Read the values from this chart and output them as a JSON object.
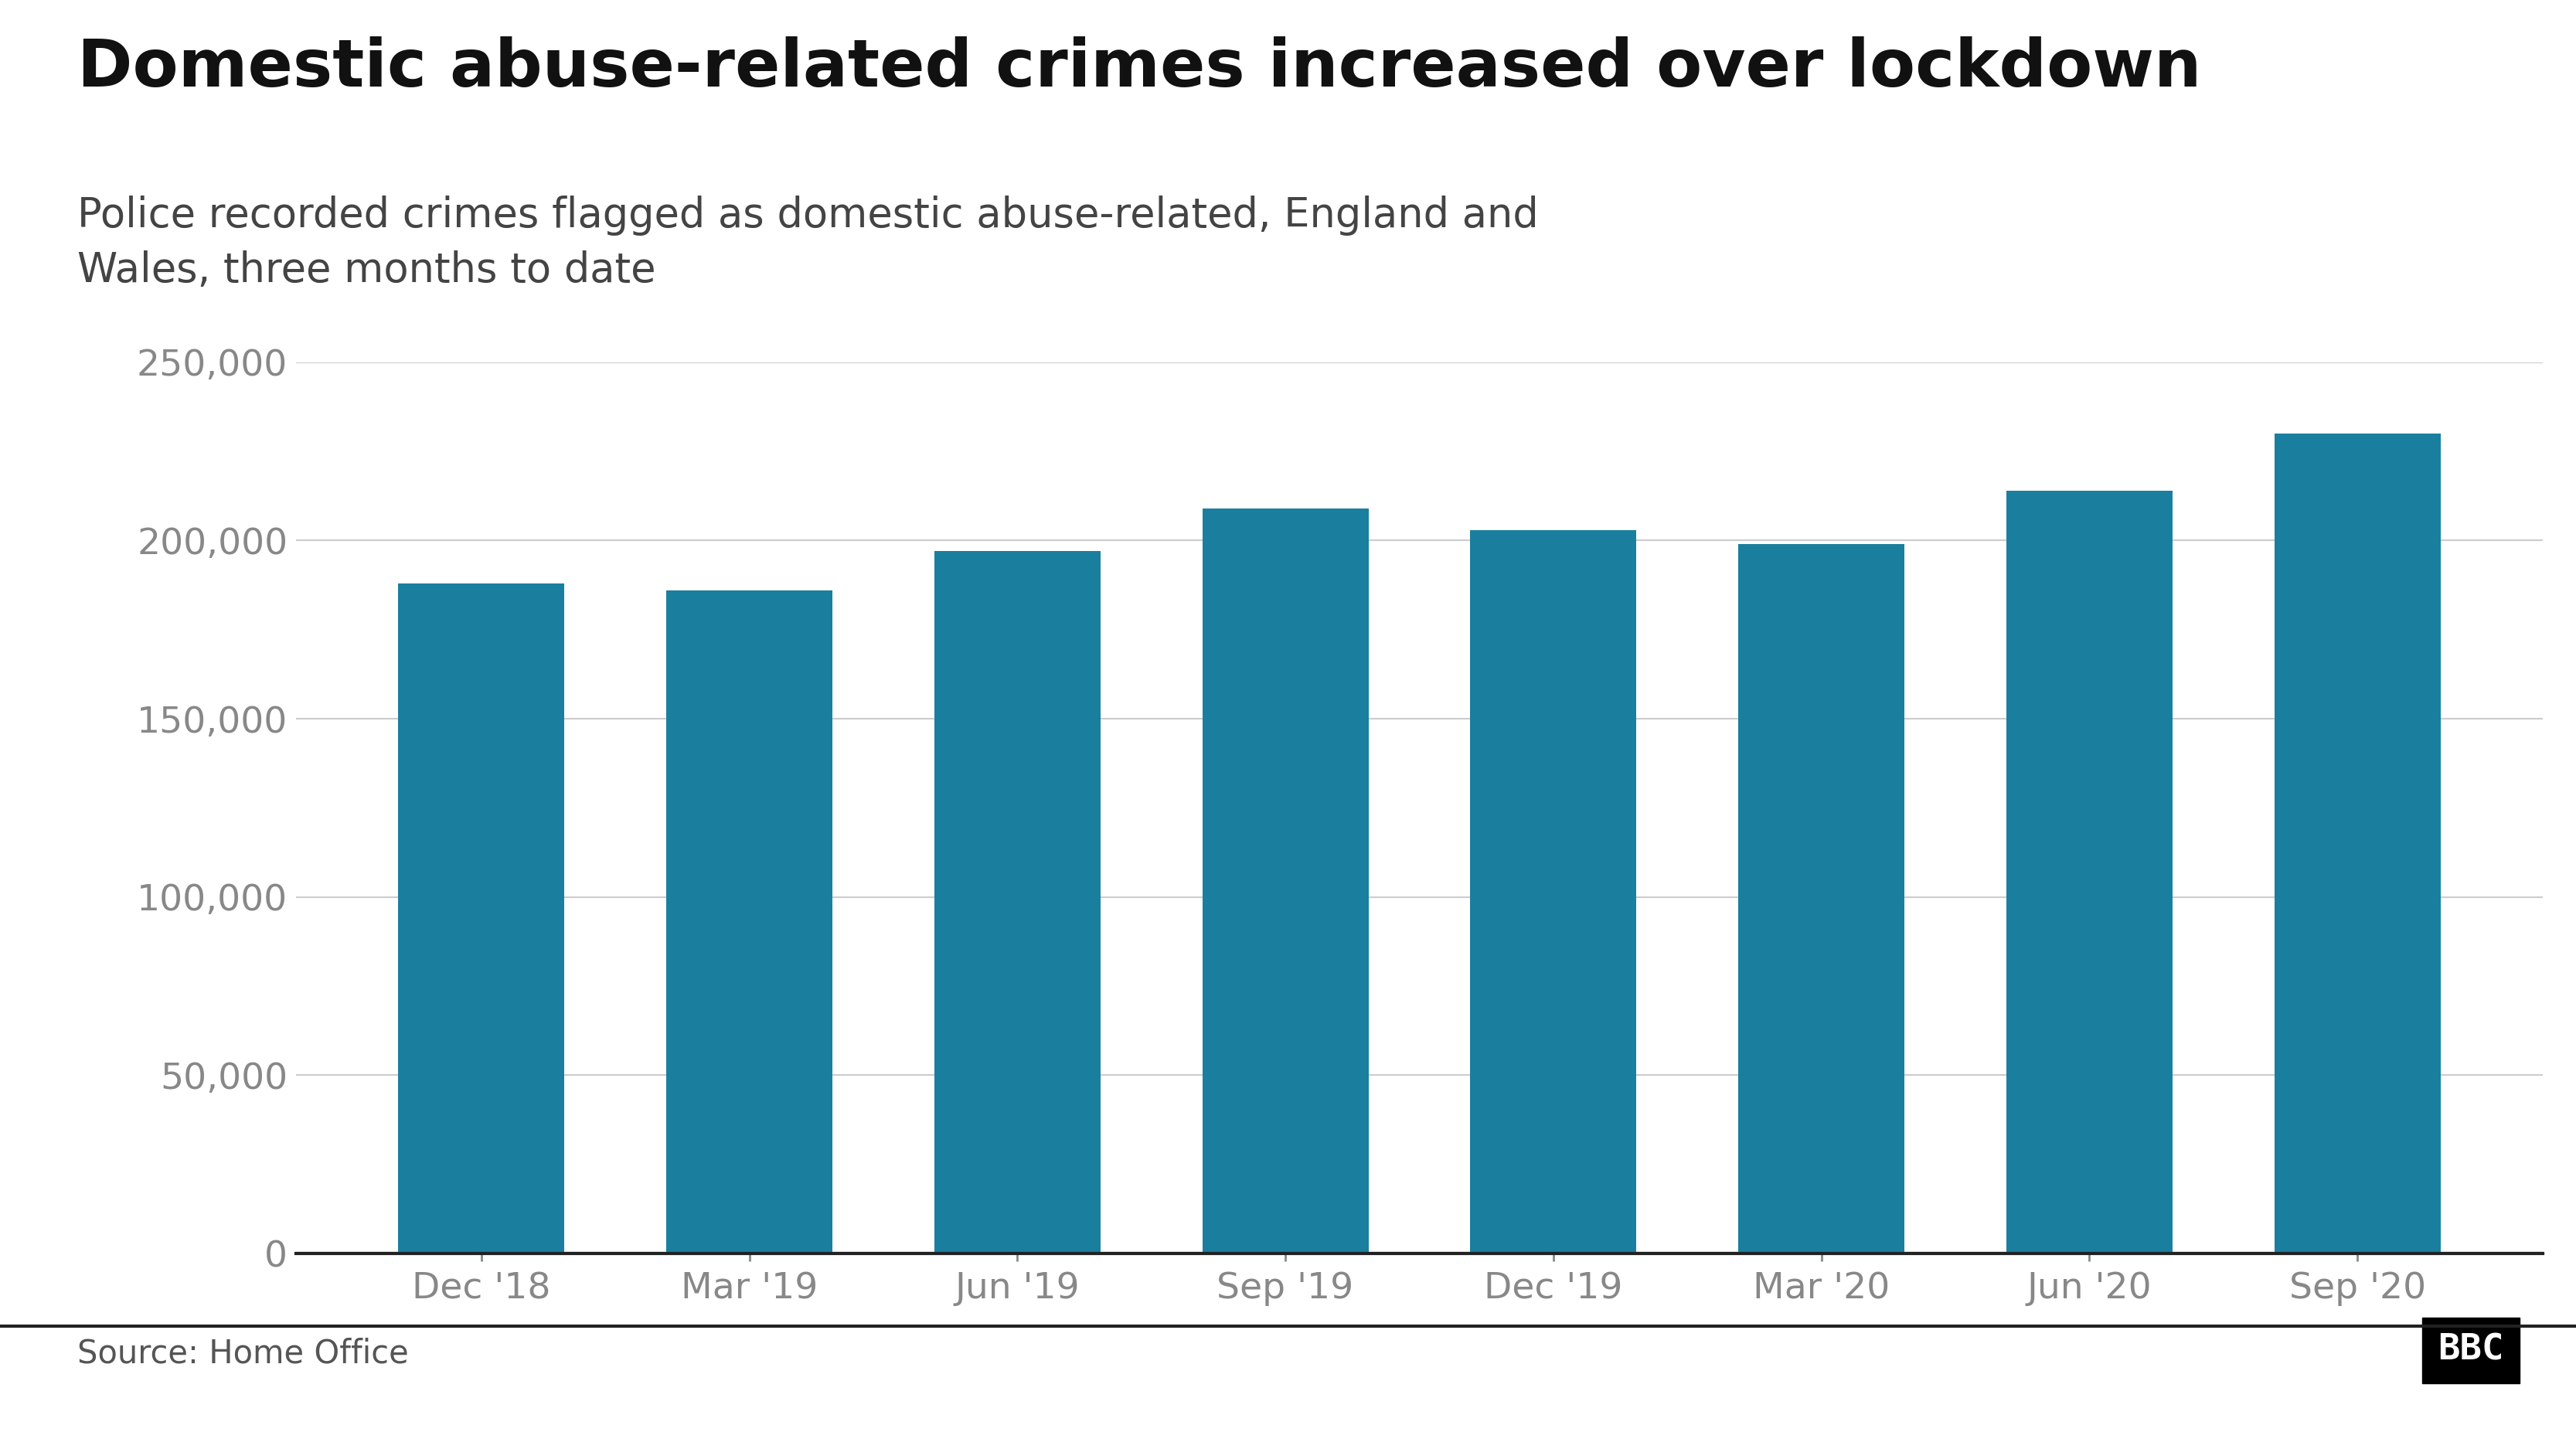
{
  "title": "Domestic abuse-related crimes increased over lockdown",
  "subtitle": "Police recorded crimes flagged as domestic abuse-related, England and\nWales, three months to date",
  "source": "Source: Home Office",
  "categories": [
    "Dec '18",
    "Mar '19",
    "Jun '19",
    "Sep '19",
    "Dec '19",
    "Mar '20",
    "Jun '20",
    "Sep '20"
  ],
  "values": [
    188000,
    186000,
    197000,
    209000,
    203000,
    199000,
    214000,
    230000
  ],
  "bar_color": "#1a7f9e",
  "background_color": "#ffffff",
  "title_color": "#111111",
  "subtitle_color": "#444444",
  "source_color": "#555555",
  "tick_color": "#888888",
  "grid_color": "#cccccc",
  "axis_line_color": "#222222",
  "ylim": [
    0,
    250000
  ],
  "yticks": [
    0,
    50000,
    100000,
    150000,
    200000,
    250000
  ],
  "title_fontsize": 62,
  "subtitle_fontsize": 38,
  "tick_fontsize": 34,
  "source_fontsize": 30,
  "bbc_fontsize": 34,
  "bar_width": 0.62
}
